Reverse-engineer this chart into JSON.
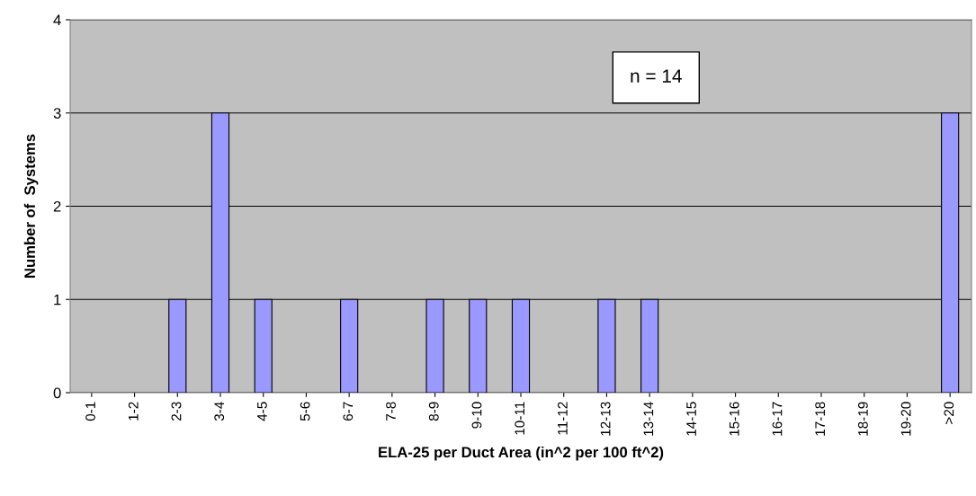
{
  "chart_data": {
    "type": "bar",
    "xlabel": "ELA-25 per Duct Area (in^2 per 100 ft^2)",
    "ylabel": "Number of  Systems",
    "categories": [
      "0-1",
      "1-2",
      "2-3",
      "3-4",
      "4-5",
      "5-6",
      "6-7",
      "7-8",
      "8-9",
      "9-10",
      "10-11",
      "11-12",
      "12-13",
      "13-14",
      "14-15",
      "15-16",
      "16-17",
      "17-18",
      "18-19",
      "19-20",
      ">20"
    ],
    "values": [
      0,
      0,
      1,
      3,
      1,
      0,
      1,
      0,
      1,
      1,
      1,
      0,
      1,
      1,
      0,
      0,
      0,
      0,
      0,
      0,
      3
    ],
    "color": "#9999ff",
    "ylim": [
      0,
      4
    ],
    "yticks": [
      0,
      1,
      2,
      3,
      4
    ],
    "grid": "y",
    "annotations": [
      "n = 14"
    ]
  }
}
